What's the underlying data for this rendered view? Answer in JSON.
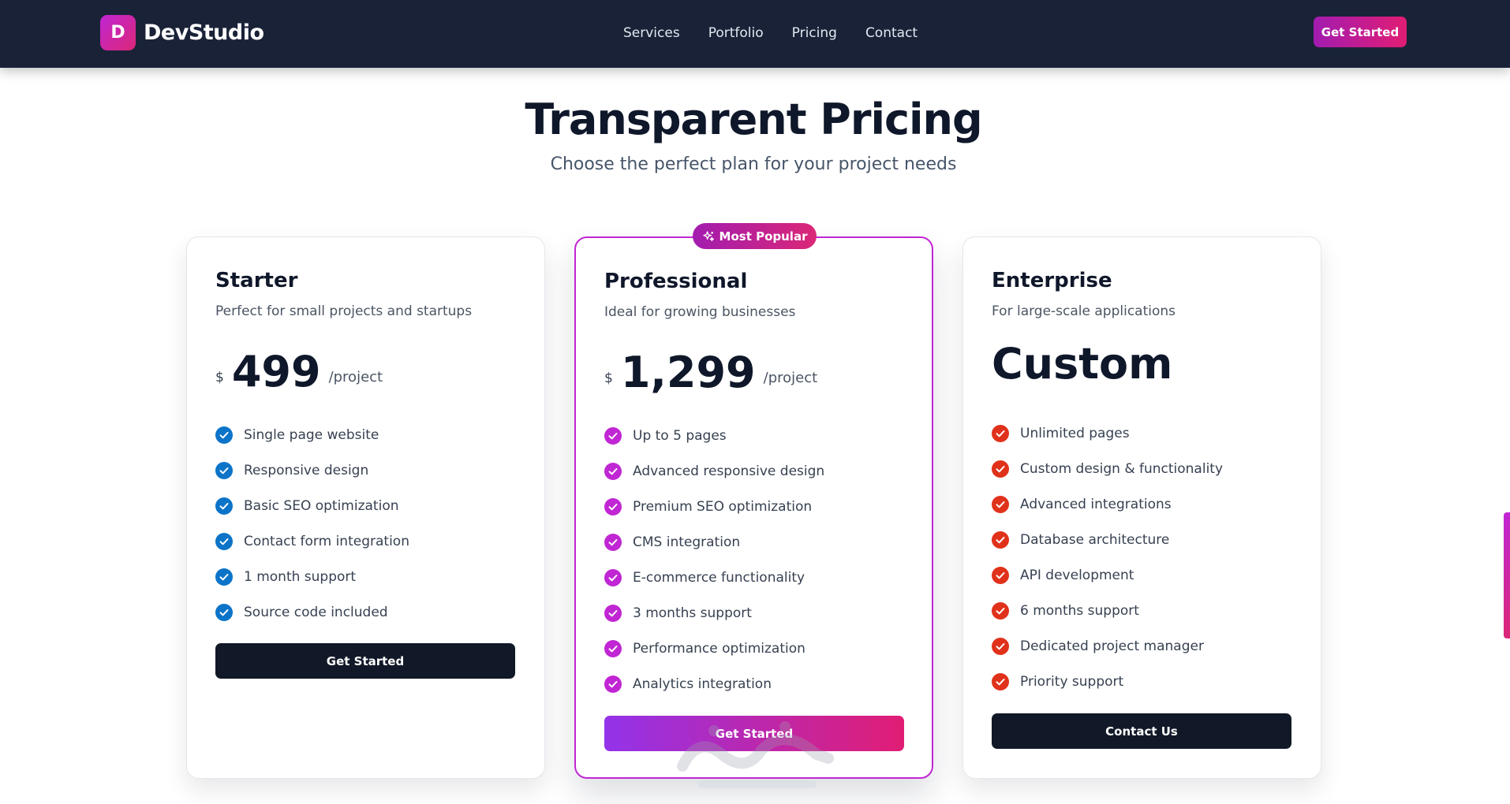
{
  "navbar": {
    "logo_letter": "D",
    "brand_name": "DevStudio",
    "links": [
      "Services",
      "Portfolio",
      "Pricing",
      "Contact"
    ],
    "cta_label": "Get Started",
    "background": "#1a2238"
  },
  "header": {
    "title": "Transparent Pricing",
    "subtitle": "Choose the perfect plan for your project needs"
  },
  "plans": [
    {
      "name": "Starter",
      "description": "Perfect for small projects and startups",
      "currency": "$",
      "price": "499",
      "unit": "/project",
      "check_color": "#0b74c9",
      "features": [
        "Single page website",
        "Responsive design",
        "Basic SEO optimization",
        "Contact form integration",
        "1 month support",
        "Source code included"
      ],
      "button_label": "Get Started"
    },
    {
      "name": "Professional",
      "badge": "Most Popular",
      "badge_icon": "sparkles-icon",
      "description": "Ideal for growing businesses",
      "currency": "$",
      "price": "1,299",
      "unit": "/project",
      "check_color": "#c026d3",
      "features": [
        "Up to 5 pages",
        "Advanced responsive design",
        "Premium SEO optimization",
        "CMS integration",
        "E-commerce functionality",
        "3 months support",
        "Performance optimization",
        "Analytics integration"
      ],
      "button_label": "Get Started"
    },
    {
      "name": "Enterprise",
      "description": "For large-scale applications",
      "price": "Custom",
      "check_color": "#e0321b",
      "features": [
        "Unlimited pages",
        "Custom design & functionality",
        "Advanced integrations",
        "Database architecture",
        "API development",
        "6 months support",
        "Dedicated project manager",
        "Priority support"
      ],
      "button_label": "Contact Us"
    }
  ],
  "colors": {
    "accent_gradient_start": "#a21caf",
    "accent_gradient_end": "#e11d74",
    "popular_border": "#c026d3",
    "dark_button": "#111827"
  }
}
